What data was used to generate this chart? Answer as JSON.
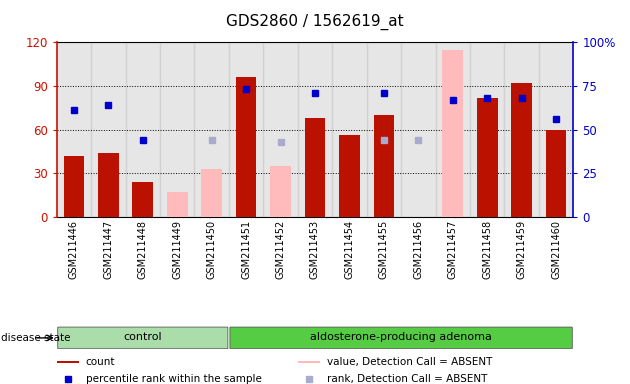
{
  "title": "GDS2860 / 1562619_at",
  "samples": [
    "GSM211446",
    "GSM211447",
    "GSM211448",
    "GSM211449",
    "GSM211450",
    "GSM211451",
    "GSM211452",
    "GSM211453",
    "GSM211454",
    "GSM211455",
    "GSM211456",
    "GSM211457",
    "GSM211458",
    "GSM211459",
    "GSM211460"
  ],
  "count": [
    42,
    44,
    24,
    null,
    null,
    96,
    null,
    68,
    56,
    70,
    null,
    null,
    82,
    92,
    60
  ],
  "percentile_rank": [
    61,
    64,
    44,
    null,
    null,
    73,
    null,
    71,
    null,
    71,
    null,
    67,
    68,
    68,
    56
  ],
  "value_absent": [
    null,
    null,
    null,
    17,
    33,
    null,
    35,
    null,
    null,
    null,
    null,
    115,
    null,
    null,
    null
  ],
  "rank_absent": [
    null,
    null,
    null,
    null,
    44,
    null,
    43,
    null,
    null,
    44,
    44,
    null,
    null,
    null,
    null
  ],
  "n_control": 5,
  "n_total": 15,
  "bar_color_count": "#bb1100",
  "bar_color_absent": "#ffbbbb",
  "dot_color_rank": "#0000cc",
  "dot_color_rank_absent": "#aaaacc",
  "ylim_left": [
    0,
    120
  ],
  "ylim_right": [
    0,
    100
  ],
  "yticks_left": [
    0,
    30,
    60,
    90,
    120
  ],
  "yticks_right": [
    0,
    25,
    50,
    75,
    100
  ],
  "ytick_labels_left": [
    "0",
    "30",
    "60",
    "90",
    "120"
  ],
  "ytick_labels_right": [
    "0",
    "25",
    "50",
    "75",
    "100%"
  ],
  "legend_items": [
    {
      "label": "count",
      "color": "#bb1100",
      "type": "bar"
    },
    {
      "label": "percentile rank within the sample",
      "color": "#0000cc",
      "type": "dot"
    },
    {
      "label": "value, Detection Call = ABSENT",
      "color": "#ffbbbb",
      "type": "bar"
    },
    {
      "label": "rank, Detection Call = ABSENT",
      "color": "#aaaacc",
      "type": "dot"
    }
  ],
  "disease_state_label": "disease state",
  "control_label": "control",
  "adenoma_label": "aldosterone-producing adenoma",
  "left_axis_color": "#cc1100",
  "right_axis_color": "#0000cc"
}
